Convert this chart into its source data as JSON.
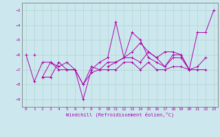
{
  "xlabel": "Windchill (Refroidissement éolien,°C)",
  "bg_color": "#cce8ee",
  "grid_color": "#b0d4cc",
  "line_color": "#aa00aa",
  "series": [
    [
      null,
      -6.0,
      null,
      null,
      null,
      null,
      null,
      null,
      null,
      null,
      null,
      null,
      null,
      null,
      null,
      null,
      null,
      null,
      null,
      null,
      null,
      null,
      null,
      null
    ],
    [
      -6.0,
      -7.8,
      -6.5,
      -6.5,
      -6.8,
      -6.5,
      -7.0,
      -9.0,
      -7.0,
      -6.5,
      -6.2,
      -3.8,
      -6.2,
      -4.5,
      -5.0,
      -6.2,
      -6.5,
      -6.8,
      -6.0,
      -6.0,
      -7.0,
      -4.5,
      -4.5,
      -3.0
    ],
    [
      null,
      null,
      -7.5,
      -7.5,
      -6.5,
      -7.0,
      -7.0,
      -8.0,
      -6.8,
      -7.0,
      -6.5,
      -6.5,
      -6.2,
      -6.2,
      -6.5,
      -5.8,
      -6.2,
      -6.8,
      -6.2,
      -6.2,
      -7.0,
      -6.8,
      -6.2,
      null
    ],
    [
      null,
      null,
      -7.5,
      -6.5,
      -7.0,
      -7.0,
      -7.0,
      -8.0,
      -7.2,
      -7.0,
      -7.0,
      -7.0,
      -6.5,
      -6.5,
      -7.0,
      -6.5,
      -7.0,
      -7.0,
      -6.8,
      -6.8,
      -7.0,
      -7.0,
      -7.0,
      null
    ],
    [
      null,
      null,
      null,
      null,
      null,
      null,
      null,
      null,
      null,
      null,
      -6.8,
      -6.5,
      -6.2,
      -5.8,
      -5.2,
      -5.8,
      -6.2,
      -5.8,
      -5.8,
      -6.0,
      -7.0,
      null,
      null,
      null
    ]
  ],
  "xlim": [
    -0.5,
    23.5
  ],
  "ylim": [
    -9.5,
    -2.5
  ],
  "yticks": [
    -9,
    -8,
    -7,
    -6,
    -5,
    -4,
    -3
  ],
  "xticks": [
    0,
    1,
    2,
    3,
    4,
    5,
    6,
    7,
    8,
    9,
    10,
    11,
    12,
    13,
    14,
    15,
    16,
    17,
    18,
    19,
    20,
    21,
    22,
    23
  ],
  "xtick_labels": [
    "0",
    "1",
    "2",
    "3",
    "4",
    "5",
    "6",
    "7",
    "8",
    "9",
    "10",
    "11",
    "12",
    "13",
    "14",
    "15",
    "16",
    "17",
    "18",
    "19",
    "20",
    "21",
    "22",
    "23"
  ]
}
